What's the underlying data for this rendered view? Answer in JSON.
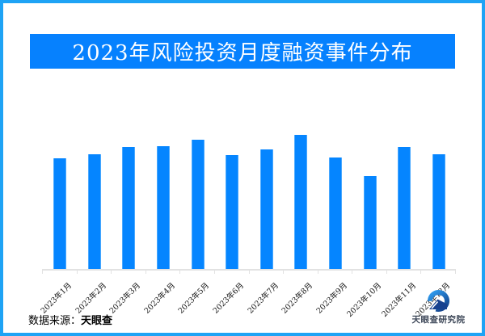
{
  "title_banner": {
    "text": "2023年风险投资月度融资事件分布",
    "background": "#0681fe",
    "text_color": "#ffffff"
  },
  "chart_data": {
    "type": "bar",
    "title": "2023年风险投资月度融资事件分布",
    "categories": [
      "2023年1月",
      "2023年2月",
      "2023年3月",
      "2023年4月",
      "2023年5月",
      "2023年6月",
      "2023年7月",
      "2023年8月",
      "2023年9月",
      "2023年10月",
      "2023年11月",
      "2023年12月"
    ],
    "values": [
      137,
      142,
      151,
      152,
      160,
      141,
      148,
      166,
      138,
      115,
      151,
      142
    ],
    "value_note": "no y-axis or data labels shown in image; values are relative bar heights (px), August highest, October lowest",
    "xlabel": "",
    "ylabel": "",
    "legend": "none",
    "grid": "off",
    "bar_color": "#0585ff",
    "bar_edge_color": "#4aa9ff",
    "axis_color": "#e2e2e2",
    "tick_label_rotation_deg": 45
  },
  "footer": {
    "source_prefix": "数据来源：",
    "source_name": "天眼查"
  },
  "logo": {
    "icon": "tianyancha-eye-logo",
    "text": "天眼查研究院",
    "icon_color_light": "#2f9ff2",
    "icon_color_dark": "#123c85"
  },
  "frame": {
    "border_color": "#1ea3f5",
    "background": "#ffffff"
  }
}
